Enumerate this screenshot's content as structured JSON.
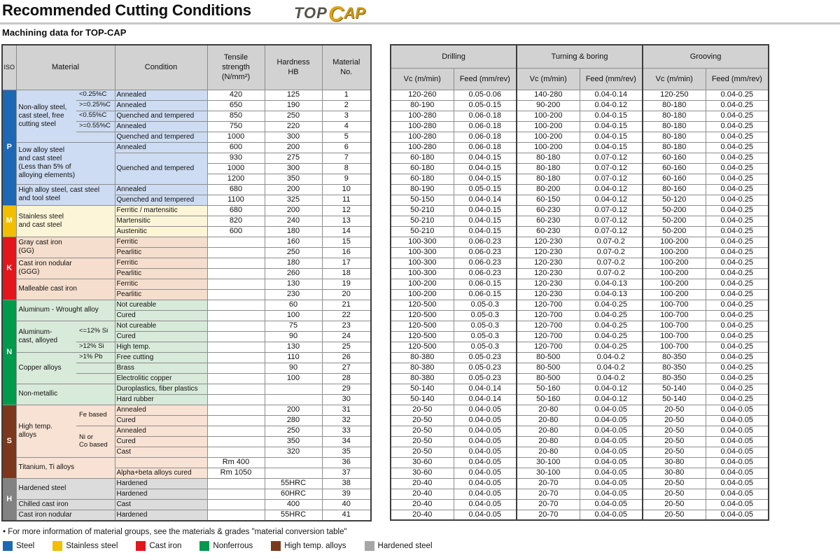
{
  "header": {
    "title": "Recommended Cutting Conditions",
    "subtitle": "Machining data for TOP-CAP",
    "logo": {
      "top": "TOP",
      "c": "C",
      "ap": "AP"
    }
  },
  "left_header": {
    "iso": "ISO",
    "material": "Material",
    "condition": "Condition",
    "tensile": "Tensile\nstrength\n(N/mm²)",
    "hardness": "Hardness\nHB",
    "material_no": "Material\nNo."
  },
  "cutting": {
    "groups": [
      {
        "label": "Drilling",
        "vc": "Vc (m/min)",
        "feed": "Feed (mm/rev)"
      },
      {
        "label": "Turning & boring",
        "vc": "Vc (m/min)",
        "feed": "Feed (mm/rev)"
      },
      {
        "label": "Grooving",
        "vc": "Vc (m/min)",
        "feed": "Feed (mm/rev)"
      }
    ]
  },
  "iso_groups": [
    {
      "label": "P",
      "start": 1,
      "end": 11,
      "color": "#1d68b4",
      "band": "#cddcf2"
    },
    {
      "label": "M",
      "start": 12,
      "end": 14,
      "color": "#f2bf00",
      "band": "#fdf5d8"
    },
    {
      "label": "K",
      "start": 15,
      "end": 20,
      "color": "#e4151b",
      "band": "#f5decd"
    },
    {
      "label": "N",
      "start": 21,
      "end": 30,
      "color": "#009a4d",
      "band": "#d8ead9"
    },
    {
      "label": "S",
      "start": 31,
      "end": 37,
      "color": "#7b381c",
      "band": "#f8e2d3"
    },
    {
      "label": "H",
      "start": 38,
      "end": 41,
      "color": "#828282",
      "band": "#dcdcdc"
    }
  ],
  "material_groups": [
    {
      "name": "Non-alloy steel,\ncast steel, free\ncutting steel",
      "start": 1,
      "end": 5,
      "sub": true
    },
    {
      "name": "Low alloy steel\nand cast steel\n(Less than 5% of\nalloying elements)",
      "start": 6,
      "end": 9,
      "sub": false
    },
    {
      "name": "High alloy steel, cast steel\nand tool steel",
      "start": 10,
      "end": 11,
      "sub": false
    },
    {
      "name": "Stainless steel\nand cast steel",
      "start": 12,
      "end": 14,
      "sub": false
    },
    {
      "name": "Gray cast iron\n(GG)",
      "start": 15,
      "end": 16,
      "sub": false
    },
    {
      "name": "Cast iron nodular\n(GGG)",
      "start": 17,
      "end": 18,
      "sub": false
    },
    {
      "name": "Malleable cast iron",
      "start": 19,
      "end": 20,
      "sub": false
    },
    {
      "name": "Aluminum - Wrought alloy",
      "start": 21,
      "end": 22,
      "sub": false
    },
    {
      "name": "Aluminum-\ncast, alloyed",
      "start": 23,
      "end": 25,
      "sub": true
    },
    {
      "name": "Copper alloys",
      "start": 26,
      "end": 28,
      "sub": true
    },
    {
      "name": "Non-metallic",
      "start": 29,
      "end": 30,
      "sub": false
    },
    {
      "name": "High temp.\nalloys",
      "start": 31,
      "end": 35,
      "sub": true
    },
    {
      "name": "Titanium, Ti alloys",
      "start": 36,
      "end": 37,
      "sub": false
    },
    {
      "name": "Hardened steel",
      "start": 38,
      "end": 39,
      "sub": false
    },
    {
      "name": "Chilled cast iron",
      "start": 40,
      "end": 40,
      "sub": false
    },
    {
      "name": "Cast iron nodular",
      "start": 41,
      "end": 41,
      "sub": false
    }
  ],
  "sub_cells": [
    {
      "row": 1,
      "span": 1,
      "label": "<0.25%C"
    },
    {
      "row": 2,
      "span": 1,
      "label": ">=0.25%C"
    },
    {
      "row": 3,
      "span": 1,
      "label": "<0.55%C"
    },
    {
      "row": 4,
      "span": 1,
      "label": ">=0.55%C"
    },
    {
      "row": 5,
      "span": 1,
      "label": ""
    },
    {
      "row": 23,
      "span": 2,
      "label": "<=12% Si"
    },
    {
      "row": 25,
      "span": 1,
      "label": ">12% Si"
    },
    {
      "row": 26,
      "span": 1,
      "label": ">1% Pb"
    },
    {
      "row": 27,
      "span": 1,
      "label": ""
    },
    {
      "row": 28,
      "span": 1,
      "label": ""
    },
    {
      "row": 31,
      "span": 2,
      "label": "Fe based"
    },
    {
      "row": 33,
      "span": 3,
      "label": "Ni or\nCo based"
    }
  ],
  "rows": [
    {
      "no": "1",
      "cond": "Annealed",
      "ten": "420",
      "hb": "125",
      "dvc": "120-260",
      "df": "0.05-0.06",
      "tvc": "140-280",
      "tf": "0.04-0.14",
      "gvc": "120-250",
      "gf": "0.04-0.25"
    },
    {
      "no": "2",
      "cond": "Annealed",
      "ten": "650",
      "hb": "190",
      "dvc": "80-190",
      "df": "0.05-0.15",
      "tvc": "90-200",
      "tf": "0.04-0.12",
      "gvc": "80-180",
      "gf": "0.04-0.25"
    },
    {
      "no": "3",
      "cond": "Quenched and tempered",
      "ten": "850",
      "hb": "250",
      "dvc": "100-280",
      "df": "0.06-0.18",
      "tvc": "100-200",
      "tf": "0.04-0.15",
      "gvc": "80-180",
      "gf": "0.04-0.25"
    },
    {
      "no": "4",
      "cond": "Annealed",
      "ten": "750",
      "hb": "220",
      "dvc": "100-280",
      "df": "0.06-0.18",
      "tvc": "100-200",
      "tf": "0.04-0.15",
      "gvc": "80-180",
      "gf": "0.04-0.25"
    },
    {
      "no": "5",
      "cond": "Quenched and tempered",
      "ten": "1000",
      "hb": "300",
      "dvc": "100-280",
      "df": "0.06-0.18",
      "tvc": "100-200",
      "tf": "0.04-0.15",
      "gvc": "80-180",
      "gf": "0.04-0.25"
    },
    {
      "no": "6",
      "cond": "Annealed",
      "ten": "600",
      "hb": "200",
      "dvc": "100-280",
      "df": "0.06-0.18",
      "tvc": "100-200",
      "tf": "0.04-0.15",
      "gvc": "80-180",
      "gf": "0.04-0.25"
    },
    {
      "no": "7",
      "cond": "Quenched and tempered",
      "cond_span": 3,
      "ten": "930",
      "hb": "275",
      "dvc": "60-180",
      "df": "0.04-0.15",
      "tvc": "80-180",
      "tf": "0.07-0.12",
      "gvc": "60-160",
      "gf": "0.04-0.25"
    },
    {
      "no": "8",
      "cond": null,
      "ten": "1000",
      "hb": "300",
      "dvc": "60-180",
      "df": "0.04-0.15",
      "tvc": "80-180",
      "tf": "0.07-0.12",
      "gvc": "60-160",
      "gf": "0.04-0.25"
    },
    {
      "no": "9",
      "cond": null,
      "ten": "1200",
      "hb": "350",
      "dvc": "60-180",
      "df": "0.04-0.15",
      "tvc": "80-180",
      "tf": "0.07-0.12",
      "gvc": "60-160",
      "gf": "0.04-0.25"
    },
    {
      "no": "10",
      "cond": "Annealed",
      "ten": "680",
      "hb": "200",
      "dvc": "80-190",
      "df": "0.05-0.15",
      "tvc": "80-200",
      "tf": "0.04-0.12",
      "gvc": "80-160",
      "gf": "0.04-0.25"
    },
    {
      "no": "11",
      "cond": "Quenched and tempered",
      "ten": "1100",
      "hb": "325",
      "dvc": "50-150",
      "df": "0.04-0.14",
      "tvc": "60-150",
      "tf": "0.04-0.12",
      "gvc": "50-120",
      "gf": "0.04-0.25"
    },
    {
      "no": "12",
      "cond": "Ferritic / martensitic",
      "ten": "680",
      "hb": "200",
      "dvc": "50-210",
      "df": "0.04-0.15",
      "tvc": "60-230",
      "tf": "0.07-0.12",
      "gvc": "50-200",
      "gf": "0.04-0.25"
    },
    {
      "no": "13",
      "cond": "Martensitic",
      "ten": "820",
      "hb": "240",
      "dvc": "50-210",
      "df": "0.04-0.15",
      "tvc": "60-230",
      "tf": "0.07-0.12",
      "gvc": "50-200",
      "gf": "0.04-0.25"
    },
    {
      "no": "14",
      "cond": "Austenitic",
      "ten": "600",
      "hb": "180",
      "dvc": "50-210",
      "df": "0.04-0.15",
      "tvc": "60-230",
      "tf": "0.07-0.12",
      "gvc": "50-200",
      "gf": "0.04-0.25"
    },
    {
      "no": "15",
      "cond": "Ferritic",
      "ten": "",
      "hb": "160",
      "dvc": "100-300",
      "df": "0.06-0.23",
      "tvc": "120-230",
      "tf": "0.07-0.2",
      "gvc": "100-200",
      "gf": "0.04-0.25"
    },
    {
      "no": "16",
      "cond": "Pearlitic",
      "ten": "",
      "hb": "250",
      "dvc": "100-300",
      "df": "0.06-0.23",
      "tvc": "120-230",
      "tf": "0.07-0.2",
      "gvc": "100-200",
      "gf": "0.04-0.25"
    },
    {
      "no": "17",
      "cond": "Ferritic",
      "ten": "",
      "hb": "180",
      "dvc": "100-300",
      "df": "0.06-0.23",
      "tvc": "120-230",
      "tf": "0.07-0.2",
      "gvc": "100-200",
      "gf": "0.04-0.25"
    },
    {
      "no": "18",
      "cond": "Pearlitic",
      "ten": "",
      "hb": "260",
      "dvc": "100-300",
      "df": "0.06-0.23",
      "tvc": "120-230",
      "tf": "0.07-0.2",
      "gvc": "100-200",
      "gf": "0.04-0.25"
    },
    {
      "no": "19",
      "cond": "Ferritic",
      "ten": "",
      "hb": "130",
      "dvc": "100-200",
      "df": "0.06-0.15",
      "tvc": "120-230",
      "tf": "0.04-0.13",
      "gvc": "100-200",
      "gf": "0.04-0.25"
    },
    {
      "no": "20",
      "cond": "Pearlitic",
      "ten": "",
      "hb": "230",
      "dvc": "100-200",
      "df": "0.06-0.15",
      "tvc": "120-230",
      "tf": "0.04-0.13",
      "gvc": "100-200",
      "gf": "0.04-0.25"
    },
    {
      "no": "21",
      "cond": "Not cureable",
      "ten": "",
      "hb": "60",
      "dvc": "120-500",
      "df": "0.05-0.3",
      "tvc": "120-700",
      "tf": "0.04-0.25",
      "gvc": "100-700",
      "gf": "0.04-0.25"
    },
    {
      "no": "22",
      "cond": "Cured",
      "ten": "",
      "hb": "100",
      "dvc": "120-500",
      "df": "0.05-0.3",
      "tvc": "120-700",
      "tf": "0.04-0.25",
      "gvc": "100-700",
      "gf": "0.04-0.25"
    },
    {
      "no": "23",
      "cond": "Not cureable",
      "ten": "",
      "hb": "75",
      "dvc": "120-500",
      "df": "0.05-0.3",
      "tvc": "120-700",
      "tf": "0.04-0.25",
      "gvc": "100-700",
      "gf": "0.04-0.25"
    },
    {
      "no": "24",
      "cond": "Cured",
      "ten": "",
      "hb": "90",
      "dvc": "120-500",
      "df": "0.05-0.3",
      "tvc": "120-700",
      "tf": "0.04-0.25",
      "gvc": "100-700",
      "gf": "0.04-0.25"
    },
    {
      "no": "25",
      "cond": "High temp.",
      "ten": "",
      "hb": "130",
      "dvc": "120-500",
      "df": "0.05-0.3",
      "tvc": "120-700",
      "tf": "0.04-0.25",
      "gvc": "100-700",
      "gf": "0.04-0.25"
    },
    {
      "no": "26",
      "cond": "Free cutting",
      "ten": "",
      "hb": "110",
      "dvc": "80-380",
      "df": "0.05-0.23",
      "tvc": "80-500",
      "tf": "0.04-0.2",
      "gvc": "80-350",
      "gf": "0.04-0.25"
    },
    {
      "no": "27",
      "cond": "Brass",
      "ten": "",
      "hb": "90",
      "dvc": "80-380",
      "df": "0.05-0.23",
      "tvc": "80-500",
      "tf": "0.04-0.2",
      "gvc": "80-350",
      "gf": "0.04-0.25"
    },
    {
      "no": "28",
      "cond": "Electrolitic copper",
      "ten": "",
      "hb": "100",
      "dvc": "80-380",
      "df": "0.05-0.23",
      "tvc": "80-500",
      "tf": "0.04-0.2",
      "gvc": "80-350",
      "gf": "0.04-0.25"
    },
    {
      "no": "29",
      "cond": "Duroplastics, fiber plastics",
      "ten": "",
      "hb": "",
      "dvc": "50-140",
      "df": "0.04-0.14",
      "tvc": "50-160",
      "tf": "0.04-0.12",
      "gvc": "50-140",
      "gf": "0.04-0.25"
    },
    {
      "no": "30",
      "cond": "Hard rubber",
      "ten": "",
      "hb": "",
      "dvc": "50-140",
      "df": "0.04-0.14",
      "tvc": "50-160",
      "tf": "0.04-0.12",
      "gvc": "50-140",
      "gf": "0.04-0.25"
    },
    {
      "no": "31",
      "cond": "Annealed",
      "ten": "",
      "hb": "200",
      "dvc": "20-50",
      "df": "0.04-0.05",
      "tvc": "20-80",
      "tf": "0.04-0.05",
      "gvc": "20-50",
      "gf": "0.04-0.05"
    },
    {
      "no": "32",
      "cond": "Cured",
      "ten": "",
      "hb": "280",
      "dvc": "20-50",
      "df": "0.04-0.05",
      "tvc": "20-80",
      "tf": "0.04-0.05",
      "gvc": "20-50",
      "gf": "0.04-0.05"
    },
    {
      "no": "33",
      "cond": "Annealed",
      "ten": "",
      "hb": "250",
      "dvc": "20-50",
      "df": "0.04-0.05",
      "tvc": "20-80",
      "tf": "0.04-0.05",
      "gvc": "20-50",
      "gf": "0.04-0.05"
    },
    {
      "no": "34",
      "cond": "Cured",
      "ten": "",
      "hb": "350",
      "dvc": "20-50",
      "df": "0.04-0.05",
      "tvc": "20-80",
      "tf": "0.04-0.05",
      "gvc": "20-50",
      "gf": "0.04-0.05"
    },
    {
      "no": "35",
      "cond": "Cast",
      "ten": "",
      "hb": "320",
      "dvc": "20-50",
      "df": "0.04-0.05",
      "tvc": "20-80",
      "tf": "0.04-0.05",
      "gvc": "20-50",
      "gf": "0.04-0.05"
    },
    {
      "no": "36",
      "cond": "",
      "ten": "Rm 400",
      "hb": "",
      "dvc": "30-60",
      "df": "0.04-0.05",
      "tvc": "30-100",
      "tf": "0.04-0.05",
      "gvc": "30-80",
      "gf": "0.04-0.05"
    },
    {
      "no": "37",
      "cond": "Alpha+beta alloys cured",
      "ten": "Rm 1050",
      "hb": "",
      "dvc": "30-60",
      "df": "0.04-0.05",
      "tvc": "30-100",
      "tf": "0.04-0.05",
      "gvc": "30-80",
      "gf": "0.04-0.05"
    },
    {
      "no": "38",
      "cond": "Hardened",
      "ten": "",
      "hb": "55HRC",
      "dvc": "20-40",
      "df": "0.04-0.05",
      "tvc": "20-70",
      "tf": "0.04-0.05",
      "gvc": "20-50",
      "gf": "0.04-0.05"
    },
    {
      "no": "39",
      "cond": "Hardened",
      "ten": "",
      "hb": "60HRC",
      "dvc": "20-40",
      "df": "0.04-0.05",
      "tvc": "20-70",
      "tf": "0.04-0.05",
      "gvc": "20-50",
      "gf": "0.04-0.05"
    },
    {
      "no": "40",
      "cond": "Cast",
      "ten": "",
      "hb": "400",
      "dvc": "20-40",
      "df": "0.04-0.05",
      "tvc": "20-70",
      "tf": "0.04-0.05",
      "gvc": "20-50",
      "gf": "0.04-0.05"
    },
    {
      "no": "41",
      "cond": "Hardened",
      "ten": "",
      "hb": "55HRC",
      "dvc": "20-40",
      "df": "0.04-0.05",
      "tvc": "20-70",
      "tf": "0.04-0.05",
      "gvc": "20-50",
      "gf": "0.04-0.05"
    }
  ],
  "footnote": "• For more information of material groups, see the materials & grades \"material conversion table\"",
  "legend": [
    {
      "label": "Steel",
      "color": "#1d68b4"
    },
    {
      "label": "Stainless steel",
      "color": "#f2bf00"
    },
    {
      "label": "Cast iron",
      "color": "#e4151b"
    },
    {
      "label": "Nonferrous",
      "color": "#009a4d"
    },
    {
      "label": "High temp. alloys",
      "color": "#7b381c"
    },
    {
      "label": "Hardened steel",
      "color": "#a6a6a6"
    }
  ]
}
